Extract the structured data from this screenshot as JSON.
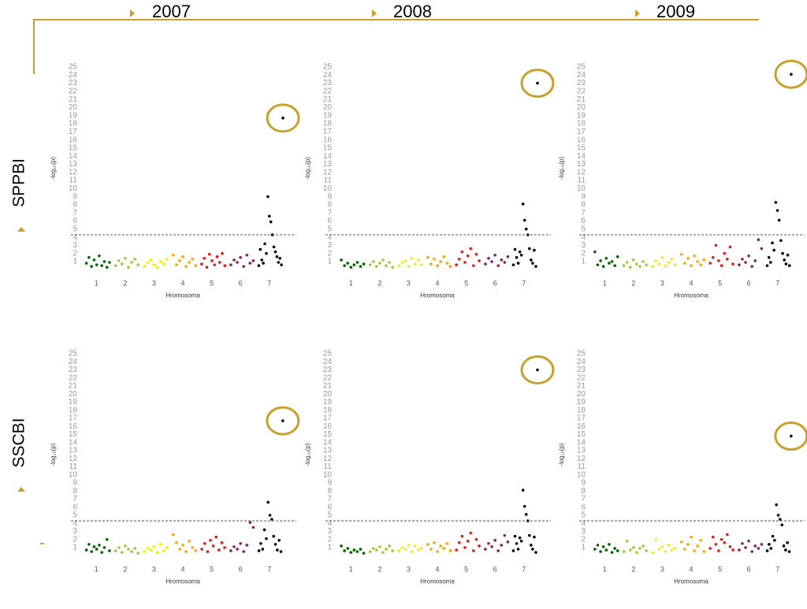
{
  "columns": [
    "2007",
    "2008",
    "2009"
  ],
  "rows": [
    "SPPBI",
    "SSCBI"
  ],
  "chart_data": [
    {
      "type": "scatter",
      "ylabel": "-log₁₀(p)",
      "xlabel": "Hromosoma",
      "ylim": [
        0,
        25
      ],
      "yticks": [
        1,
        2,
        3,
        4,
        5,
        6,
        7,
        8,
        9,
        10,
        11,
        12,
        13,
        14,
        15,
        16,
        17,
        18,
        19,
        20,
        21,
        22,
        23,
        24,
        25
      ],
      "threshold": 4.3,
      "series": [
        {
          "name": "1",
          "color": "#006400",
          "values": [
            0.8,
            1.5,
            0.4,
            1.2,
            0.6,
            1.7,
            0.5,
            1.0,
            0.3,
            0.9
          ]
        },
        {
          "name": "2",
          "color": "#9acd32",
          "values": [
            0.5,
            1.1,
            0.7,
            1.4,
            0.3,
            0.9,
            1.3,
            0.6
          ]
        },
        {
          "name": "3",
          "color": "#f2f000",
          "values": [
            0.4,
            0.9,
            1.2,
            0.6,
            0.3,
            1.0,
            0.7,
            1.3
          ]
        },
        {
          "name": "4",
          "color": "#ffa500",
          "values": [
            1.8,
            0.6,
            1.1,
            1.6,
            0.4,
            0.9,
            1.3,
            0.5
          ]
        },
        {
          "name": "5",
          "color": "#e81818",
          "values": [
            0.7,
            1.4,
            0.3,
            1.9,
            1.1,
            0.6,
            1.6,
            0.9,
            2.0,
            0.5
          ]
        },
        {
          "name": "6",
          "color": "#8b2252",
          "values": [
            0.6,
            1.2,
            0.9,
            1.5,
            0.4,
            1.8,
            0.8,
            1.1
          ]
        },
        {
          "name": "7",
          "color": "#000000",
          "values": [
            0.5,
            2.5,
            1.2,
            0.8,
            3.2,
            2.0,
            9.0,
            6.6,
            5.9,
            4.3,
            2.8,
            2.2,
            1.6,
            0.9,
            1.4,
            0.6,
            18.7
          ]
        }
      ]
    },
    {
      "type": "scatter",
      "ylabel": "-log₁₀(p)",
      "xlabel": "Hromosoma",
      "ylim": [
        0,
        25
      ],
      "yticks": [
        1,
        2,
        3,
        4,
        5,
        6,
        7,
        8,
        9,
        10,
        11,
        12,
        13,
        14,
        15,
        16,
        17,
        18,
        19,
        20,
        21,
        22,
        23,
        24,
        25
      ],
      "threshold": 4.3,
      "series": [
        {
          "name": "1",
          "color": "#006400",
          "values": [
            1.2,
            0.5,
            0.8,
            0.3,
            0.6,
            0.9,
            0.4,
            0.7
          ]
        },
        {
          "name": "2",
          "color": "#9acd32",
          "values": [
            0.6,
            1.0,
            0.4,
            0.8,
            1.2,
            0.5,
            0.9,
            0.3
          ]
        },
        {
          "name": "3",
          "color": "#f2f000",
          "values": [
            0.5,
            0.9,
            1.1,
            0.4,
            1.4,
            0.7,
            1.2,
            0.6
          ]
        },
        {
          "name": "4",
          "color": "#ffa500",
          "values": [
            1.5,
            0.7,
            1.3,
            0.5,
            1.0,
            1.6,
            0.8,
            0.4
          ]
        },
        {
          "name": "5",
          "color": "#e81818",
          "values": [
            0.6,
            1.3,
            2.2,
            0.9,
            1.7,
            2.6,
            0.5,
            1.9,
            1.1
          ]
        },
        {
          "name": "6",
          "color": "#8b2252",
          "values": [
            0.7,
            1.4,
            1.0,
            1.8,
            0.5,
            1.2,
            0.9,
            1.6
          ]
        },
        {
          "name": "7",
          "color": "#000000",
          "values": [
            0.6,
            2.5,
            1.5,
            0.8,
            2.2,
            1.8,
            8.1,
            6.1,
            5.0,
            4.3,
            2.6,
            1.2,
            0.8,
            2.4,
            0.4,
            23.0
          ]
        }
      ]
    },
    {
      "type": "scatter",
      "ylabel": "-log₁₀(p)",
      "xlabel": "Hromosoma",
      "ylim": [
        0,
        25
      ],
      "yticks": [
        1,
        2,
        3,
        4,
        5,
        6,
        7,
        8,
        9,
        10,
        11,
        12,
        13,
        14,
        15,
        16,
        17,
        18,
        19,
        20,
        21,
        22,
        23,
        24,
        25
      ],
      "threshold": 4.3,
      "series": [
        {
          "name": "1",
          "color": "#006400",
          "values": [
            2.2,
            0.6,
            1.1,
            0.4,
            1.4,
            0.8,
            1.0,
            0.5,
            1.6
          ]
        },
        {
          "name": "2",
          "color": "#9acd32",
          "values": [
            0.5,
            0.9,
            0.3,
            1.2,
            0.7,
            0.4,
            1.0,
            0.6
          ]
        },
        {
          "name": "3",
          "color": "#f2f000",
          "values": [
            0.4,
            1.1,
            0.7,
            1.5,
            0.5,
            0.9,
            1.3,
            0.6
          ]
        },
        {
          "name": "4",
          "color": "#ffa500",
          "values": [
            1.9,
            0.8,
            1.4,
            0.5,
            1.7,
            1.0,
            0.6,
            1.2
          ]
        },
        {
          "name": "5",
          "color": "#e81818",
          "values": [
            0.8,
            1.5,
            3.0,
            1.1,
            0.5,
            2.0,
            1.3,
            2.8,
            0.7
          ]
        },
        {
          "name": "6",
          "color": "#8b2252",
          "values": [
            0.6,
            1.3,
            0.9,
            1.7,
            0.4,
            1.1,
            3.7,
            2.6
          ]
        },
        {
          "name": "7",
          "color": "#000000",
          "values": [
            0.5,
            1.5,
            0.9,
            3.3,
            2.4,
            8.3,
            7.3,
            6.1,
            3.6,
            2.0,
            1.2,
            0.7,
            1.8,
            0.5,
            24.1
          ]
        }
      ]
    },
    {
      "type": "scatter",
      "ylabel": "-log₁₀(p)",
      "xlabel": "Hromosoma",
      "ylim": [
        0,
        25
      ],
      "yticks": [
        1,
        2,
        3,
        4,
        5,
        6,
        7,
        8,
        9,
        10,
        11,
        12,
        13,
        14,
        15,
        16,
        17,
        18,
        19,
        20,
        21,
        22,
        23,
        24,
        25
      ],
      "threshold": 4.3,
      "series": [
        {
          "name": "1",
          "color": "#006400",
          "values": [
            0.7,
            1.4,
            0.5,
            1.1,
            0.8,
            1.3,
            0.4,
            1.0,
            2.0,
            0.6
          ]
        },
        {
          "name": "2",
          "color": "#9acd32",
          "values": [
            0.6,
            1.0,
            0.4,
            1.2,
            0.8,
            0.5,
            0.9,
            0.3
          ]
        },
        {
          "name": "3",
          "color": "#f2f000",
          "values": [
            0.5,
            0.9,
            0.7,
            1.1,
            0.4,
            1.4,
            0.6,
            1.0
          ]
        },
        {
          "name": "4",
          "color": "#ffa500",
          "values": [
            2.6,
            1.6,
            0.8,
            1.3,
            0.5,
            1.8,
            1.0,
            0.6
          ]
        },
        {
          "name": "5",
          "color": "#e81818",
          "values": [
            0.8,
            1.5,
            0.5,
            1.9,
            1.2,
            2.3,
            0.7,
            1.6,
            1.0
          ]
        },
        {
          "name": "6",
          "color": "#8b2252",
          "values": [
            0.6,
            1.1,
            0.8,
            1.5,
            0.5,
            1.3,
            4.1,
            3.5
          ]
        },
        {
          "name": "7",
          "color": "#000000",
          "values": [
            0.6,
            1.5,
            0.8,
            3.2,
            2.1,
            6.6,
            5.0,
            4.5,
            2.4,
            1.4,
            0.7,
            1.9,
            0.5,
            16.7
          ]
        }
      ]
    },
    {
      "type": "scatter",
      "ylabel": "-log₁₀(p)",
      "xlabel": "Hromosoma",
      "ylim": [
        0,
        25
      ],
      "yticks": [
        1,
        2,
        3,
        4,
        5,
        6,
        7,
        8,
        9,
        10,
        11,
        12,
        13,
        14,
        15,
        16,
        17,
        18,
        19,
        20,
        21,
        22,
        23,
        24,
        25
      ],
      "threshold": 4.3,
      "series": [
        {
          "name": "1",
          "color": "#006400",
          "values": [
            1.2,
            0.6,
            0.9,
            0.4,
            0.7,
            0.5,
            0.8,
            0.3
          ]
        },
        {
          "name": "2",
          "color": "#9acd32",
          "values": [
            0.5,
            0.9,
            0.7,
            1.1,
            0.4,
            0.8,
            1.2,
            0.6
          ]
        },
        {
          "name": "3",
          "color": "#f2f000",
          "values": [
            0.6,
            1.0,
            0.8,
            1.3,
            0.5,
            1.2,
            0.7,
            0.9
          ]
        },
        {
          "name": "4",
          "color": "#ffa500",
          "values": [
            1.4,
            0.8,
            1.6,
            0.5,
            1.2,
            0.9,
            1.5,
            0.6
          ]
        },
        {
          "name": "5",
          "color": "#e81818",
          "values": [
            0.7,
            1.6,
            2.4,
            1.0,
            1.8,
            2.8,
            0.6,
            2.0,
            1.2
          ]
        },
        {
          "name": "6",
          "color": "#8b2252",
          "values": [
            0.8,
            1.5,
            1.1,
            1.9,
            0.6,
            1.3,
            2.5,
            1.7
          ]
        },
        {
          "name": "7",
          "color": "#000000",
          "values": [
            0.6,
            2.4,
            1.5,
            0.8,
            2.2,
            1.8,
            8.1,
            6.1,
            5.1,
            4.3,
            2.5,
            1.3,
            0.8,
            2.3,
            0.4,
            23.0
          ]
        }
      ]
    },
    {
      "type": "scatter",
      "ylabel": "-log₁₀(p)",
      "xlabel": "Hromosoma",
      "ylim": [
        0,
        25
      ],
      "yticks": [
        1,
        2,
        3,
        4,
        5,
        6,
        7,
        8,
        9,
        10,
        11,
        12,
        13,
        14,
        15,
        16,
        17,
        18,
        19,
        20,
        21,
        22,
        23,
        24,
        25
      ],
      "threshold": 4.3,
      "series": [
        {
          "name": "1",
          "color": "#006400",
          "values": [
            0.8,
            1.3,
            0.5,
            1.1,
            0.7,
            1.4,
            0.4,
            0.9,
            0.6
          ]
        },
        {
          "name": "2",
          "color": "#9acd32",
          "values": [
            0.5,
            1.8,
            0.7,
            1.0,
            0.4,
            0.9,
            1.2,
            0.6
          ]
        },
        {
          "name": "3",
          "color": "#f2f000",
          "values": [
            0.4,
            2.0,
            0.8,
            1.1,
            0.5,
            1.3,
            0.7,
            0.9
          ]
        },
        {
          "name": "4",
          "color": "#ffa500",
          "values": [
            1.7,
            0.8,
            1.4,
            2.3,
            0.6,
            1.2,
            1.9,
            0.5
          ]
        },
        {
          "name": "5",
          "color": "#e81818",
          "values": [
            0.9,
            2.3,
            1.4,
            0.6,
            2.0,
            1.6,
            2.6,
            1.1,
            0.7
          ]
        },
        {
          "name": "6",
          "color": "#8b2252",
          "values": [
            0.7,
            1.5,
            1.0,
            1.8,
            0.5,
            1.2,
            0.9,
            1.4
          ]
        },
        {
          "name": "7",
          "color": "#000000",
          "values": [
            0.6,
            1.4,
            0.9,
            2.4,
            1.9,
            6.3,
            5.0,
            4.5,
            3.8,
            1.2,
            0.7,
            1.6,
            0.5,
            14.8
          ]
        }
      ]
    }
  ]
}
